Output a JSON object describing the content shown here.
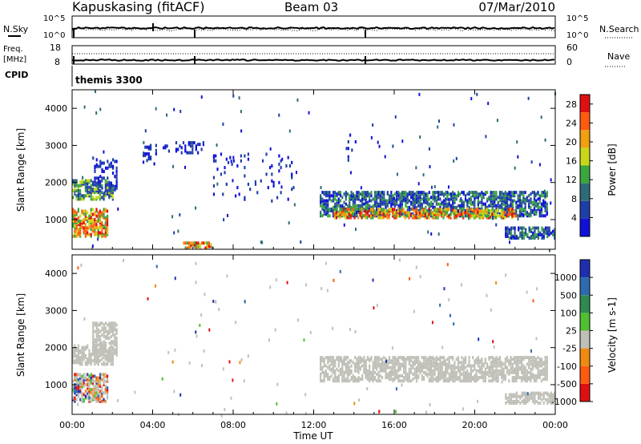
{
  "header": {
    "station": "Kapuskasing (fitACF)",
    "beam": "Beam 03",
    "date": "07/Mar/2010"
  },
  "panels": {
    "nsky": {
      "left_label": "N.Sky",
      "right_label": "N.Search",
      "left_ticks": [
        "10^5",
        "10^0"
      ],
      "right_ticks": [
        "10^5",
        "10^0"
      ]
    },
    "freq": {
      "left_label_1": "Freq.",
      "left_label_2": "[MHz]",
      "right_label": "Nave",
      "left_ticks": [
        "18",
        "8"
      ],
      "right_ticks": [
        "60",
        "0"
      ]
    },
    "cpid": {
      "label": "CPID",
      "value": "themis 3300"
    }
  },
  "chart_data": [
    {
      "type": "heatmap",
      "name": "power",
      "xlabel": "",
      "ylabel": "Slant Range [km]",
      "x_range_hours": [
        0,
        24
      ],
      "ylim": [
        200,
        4500
      ],
      "yticks": [
        "1000",
        "2000",
        "3000",
        "4000"
      ],
      "colorbar": {
        "label": "Power [dB]",
        "ticks": [
          "4",
          "8",
          "12",
          "16",
          "20",
          "24",
          "28"
        ],
        "range": [
          0,
          30
        ],
        "colors": [
          "#1010d8",
          "#1e3fa8",
          "#2f6a78",
          "#3aa640",
          "#c8d818",
          "#f0a010",
          "#ff5a10",
          "#e01010"
        ]
      },
      "regions": [
        {
          "t": [
            0.0,
            2.0
          ],
          "range_km": [
            1550,
            2050
          ],
          "level": "medium-high"
        },
        {
          "t": [
            1.0,
            2.2
          ],
          "range_km": [
            1800,
            2700
          ],
          "level": "low"
        },
        {
          "t": [
            0.0,
            1.8
          ],
          "range_km": [
            550,
            1300
          ],
          "level": "high"
        },
        {
          "t": [
            3.5,
            4.2
          ],
          "range_km": [
            2500,
            3000
          ],
          "level": "low"
        },
        {
          "t": [
            4.5,
            6.5
          ],
          "range_km": [
            2800,
            3100
          ],
          "level": "low"
        },
        {
          "t": [
            5.5,
            7.0
          ],
          "range_km": [
            230,
            380
          ],
          "level": "high"
        },
        {
          "t": [
            7.0,
            11.0
          ],
          "range_km": [
            1500,
            2800
          ],
          "level": "sparse"
        },
        {
          "t": [
            12.3,
            23.6
          ],
          "range_km": [
            1100,
            1750
          ],
          "level": "medium"
        },
        {
          "t": [
            13.0,
            22.0
          ],
          "range_km": [
            1050,
            1300
          ],
          "level": "high"
        },
        {
          "t": [
            13.5,
            14.3
          ],
          "range_km": [
            2600,
            3300
          ],
          "level": "sparse"
        },
        {
          "t": [
            21.5,
            24.0
          ],
          "range_km": [
            500,
            800
          ],
          "level": "medium"
        }
      ]
    },
    {
      "type": "heatmap",
      "name": "velocity",
      "xlabel": "Time UT",
      "ylabel": "Slant Range [km]",
      "x_range_hours": [
        0,
        24
      ],
      "xticks": [
        "00:00",
        "04:00",
        "08:00",
        "12:00",
        "16:00",
        "20:00",
        "00:00"
      ],
      "ylim": [
        200,
        4500
      ],
      "yticks": [
        "1000",
        "2000",
        "3000",
        "4000"
      ],
      "colorbar": {
        "label": "Velocity [m s-1]",
        "ticks": [
          "1000",
          "500",
          "100",
          "25",
          "-25",
          "-100",
          "-500",
          "-1000"
        ],
        "colors": [
          "#1e2fb0",
          "#2e6ab0",
          "#2f8a50",
          "#50c030",
          "#c0c0b8",
          "#f08a10",
          "#ff5a10",
          "#e01010"
        ]
      },
      "regions": [
        {
          "t": [
            0.0,
            2.0
          ],
          "range_km": [
            1550,
            2050
          ],
          "level": "ground-scatter"
        },
        {
          "t": [
            1.0,
            2.2
          ],
          "range_km": [
            1800,
            2700
          ],
          "level": "ground-scatter"
        },
        {
          "t": [
            0.0,
            1.8
          ],
          "range_km": [
            550,
            1300
          ],
          "level": "mixed"
        },
        {
          "t": [
            12.3,
            23.6
          ],
          "range_km": [
            1100,
            1750
          ],
          "level": "ground-scatter"
        },
        {
          "t": [
            21.5,
            24.0
          ],
          "range_km": [
            500,
            800
          ],
          "level": "ground-scatter"
        }
      ]
    }
  ],
  "colors": {
    "axis": "#000000",
    "ground_scatter": "#c0c0b8"
  }
}
